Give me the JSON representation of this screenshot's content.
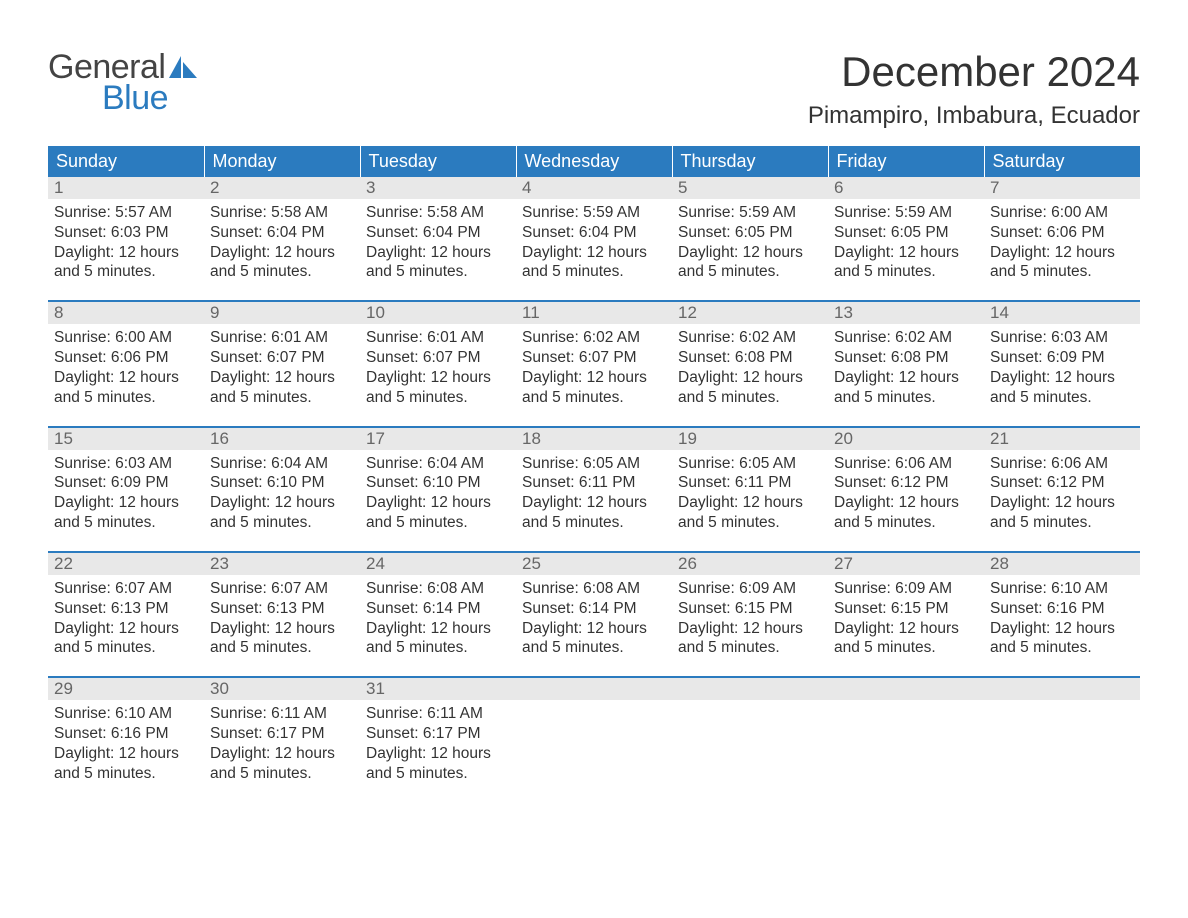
{
  "logo": {
    "word1": "General",
    "word2": "Blue",
    "text_color": "#444444",
    "accent_color": "#2b7bbf"
  },
  "title": "December 2024",
  "location": "Pimampiro, Imbabura, Ecuador",
  "colors": {
    "header_bg": "#2b7bbf",
    "header_text": "#ffffff",
    "daynum_bg": "#e8e8e8",
    "daynum_text": "#666666",
    "body_text": "#333333",
    "page_bg": "#ffffff",
    "row_sep": "#2b7bbf"
  },
  "fonts": {
    "title_size_pt": 32,
    "location_size_pt": 18,
    "header_size_pt": 14,
    "body_size_pt": 12
  },
  "weekdays": [
    "Sunday",
    "Monday",
    "Tuesday",
    "Wednesday",
    "Thursday",
    "Friday",
    "Saturday"
  ],
  "daylight_phrase": "Daylight: 12 hours and 5 minutes.",
  "days": [
    {
      "n": 1,
      "sunrise": "5:57 AM",
      "sunset": "6:03 PM"
    },
    {
      "n": 2,
      "sunrise": "5:58 AM",
      "sunset": "6:04 PM"
    },
    {
      "n": 3,
      "sunrise": "5:58 AM",
      "sunset": "6:04 PM"
    },
    {
      "n": 4,
      "sunrise": "5:59 AM",
      "sunset": "6:04 PM"
    },
    {
      "n": 5,
      "sunrise": "5:59 AM",
      "sunset": "6:05 PM"
    },
    {
      "n": 6,
      "sunrise": "5:59 AM",
      "sunset": "6:05 PM"
    },
    {
      "n": 7,
      "sunrise": "6:00 AM",
      "sunset": "6:06 PM"
    },
    {
      "n": 8,
      "sunrise": "6:00 AM",
      "sunset": "6:06 PM"
    },
    {
      "n": 9,
      "sunrise": "6:01 AM",
      "sunset": "6:07 PM"
    },
    {
      "n": 10,
      "sunrise": "6:01 AM",
      "sunset": "6:07 PM"
    },
    {
      "n": 11,
      "sunrise": "6:02 AM",
      "sunset": "6:07 PM"
    },
    {
      "n": 12,
      "sunrise": "6:02 AM",
      "sunset": "6:08 PM"
    },
    {
      "n": 13,
      "sunrise": "6:02 AM",
      "sunset": "6:08 PM"
    },
    {
      "n": 14,
      "sunrise": "6:03 AM",
      "sunset": "6:09 PM"
    },
    {
      "n": 15,
      "sunrise": "6:03 AM",
      "sunset": "6:09 PM"
    },
    {
      "n": 16,
      "sunrise": "6:04 AM",
      "sunset": "6:10 PM"
    },
    {
      "n": 17,
      "sunrise": "6:04 AM",
      "sunset": "6:10 PM"
    },
    {
      "n": 18,
      "sunrise": "6:05 AM",
      "sunset": "6:11 PM"
    },
    {
      "n": 19,
      "sunrise": "6:05 AM",
      "sunset": "6:11 PM"
    },
    {
      "n": 20,
      "sunrise": "6:06 AM",
      "sunset": "6:12 PM"
    },
    {
      "n": 21,
      "sunrise": "6:06 AM",
      "sunset": "6:12 PM"
    },
    {
      "n": 22,
      "sunrise": "6:07 AM",
      "sunset": "6:13 PM"
    },
    {
      "n": 23,
      "sunrise": "6:07 AM",
      "sunset": "6:13 PM"
    },
    {
      "n": 24,
      "sunrise": "6:08 AM",
      "sunset": "6:14 PM"
    },
    {
      "n": 25,
      "sunrise": "6:08 AM",
      "sunset": "6:14 PM"
    },
    {
      "n": 26,
      "sunrise": "6:09 AM",
      "sunset": "6:15 PM"
    },
    {
      "n": 27,
      "sunrise": "6:09 AM",
      "sunset": "6:15 PM"
    },
    {
      "n": 28,
      "sunrise": "6:10 AM",
      "sunset": "6:16 PM"
    },
    {
      "n": 29,
      "sunrise": "6:10 AM",
      "sunset": "6:16 PM"
    },
    {
      "n": 30,
      "sunrise": "6:11 AM",
      "sunset": "6:17 PM"
    },
    {
      "n": 31,
      "sunrise": "6:11 AM",
      "sunset": "6:17 PM"
    }
  ],
  "layout": {
    "first_day_column": 0,
    "columns": 7,
    "rows": 5
  }
}
